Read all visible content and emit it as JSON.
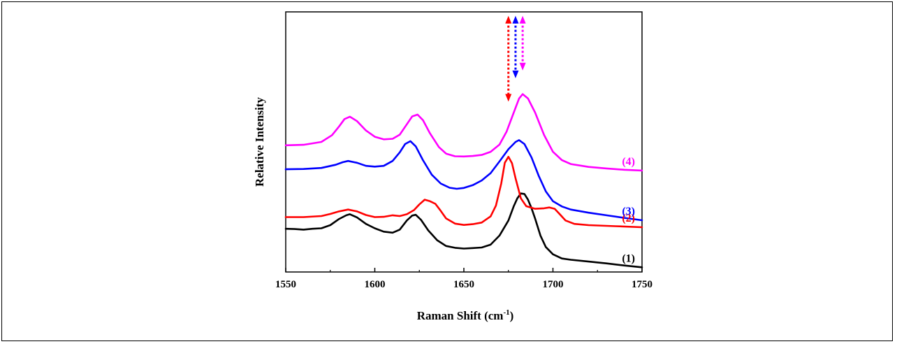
{
  "chart_data": {
    "type": "line",
    "xlabel": "Raman Shift (cm",
    "xlabel_sup": "-1",
    "xlabel_end": ")",
    "ylabel": "Relative Intensity",
    "xlim": [
      1550,
      1750
    ],
    "ylim": [
      0,
      1
    ],
    "x_ticks": [
      "1550",
      "1600",
      "1650",
      "1700",
      "1750"
    ],
    "y_ticks_shown": false,
    "grid": false,
    "series": [
      {
        "name": "(1)",
        "color": "#000000",
        "points": [
          [
            1550,
            0.166
          ],
          [
            1555,
            0.165
          ],
          [
            1560,
            0.163
          ],
          [
            1565,
            0.166
          ],
          [
            1570,
            0.168
          ],
          [
            1575,
            0.18
          ],
          [
            1580,
            0.204
          ],
          [
            1584,
            0.218
          ],
          [
            1586,
            0.222
          ],
          [
            1590,
            0.21
          ],
          [
            1595,
            0.185
          ],
          [
            1600,
            0.168
          ],
          [
            1605,
            0.155
          ],
          [
            1610,
            0.151
          ],
          [
            1614,
            0.163
          ],
          [
            1618,
            0.198
          ],
          [
            1621,
            0.217
          ],
          [
            1623,
            0.22
          ],
          [
            1626,
            0.2
          ],
          [
            1630,
            0.16
          ],
          [
            1635,
            0.122
          ],
          [
            1640,
            0.1
          ],
          [
            1645,
            0.093
          ],
          [
            1650,
            0.09
          ],
          [
            1655,
            0.092
          ],
          [
            1660,
            0.094
          ],
          [
            1665,
            0.105
          ],
          [
            1670,
            0.14
          ],
          [
            1675,
            0.198
          ],
          [
            1678,
            0.253
          ],
          [
            1680,
            0.283
          ],
          [
            1682,
            0.302
          ],
          [
            1684,
            0.3
          ],
          [
            1686,
            0.278
          ],
          [
            1688,
            0.245
          ],
          [
            1690,
            0.205
          ],
          [
            1693,
            0.14
          ],
          [
            1696,
            0.096
          ],
          [
            1700,
            0.068
          ],
          [
            1705,
            0.052
          ],
          [
            1710,
            0.047
          ],
          [
            1720,
            0.04
          ],
          [
            1730,
            0.033
          ],
          [
            1740,
            0.025
          ],
          [
            1750,
            0.018
          ]
        ]
      },
      {
        "name": "(2)",
        "color": "#ff0000",
        "points": [
          [
            1550,
            0.211
          ],
          [
            1560,
            0.211
          ],
          [
            1570,
            0.215
          ],
          [
            1575,
            0.223
          ],
          [
            1580,
            0.233
          ],
          [
            1585,
            0.24
          ],
          [
            1590,
            0.233
          ],
          [
            1595,
            0.219
          ],
          [
            1600,
            0.211
          ],
          [
            1605,
            0.212
          ],
          [
            1610,
            0.218
          ],
          [
            1614,
            0.215
          ],
          [
            1618,
            0.222
          ],
          [
            1622,
            0.238
          ],
          [
            1625,
            0.26
          ],
          [
            1628,
            0.278
          ],
          [
            1631,
            0.272
          ],
          [
            1634,
            0.262
          ],
          [
            1637,
            0.235
          ],
          [
            1640,
            0.206
          ],
          [
            1645,
            0.186
          ],
          [
            1650,
            0.181
          ],
          [
            1655,
            0.184
          ],
          [
            1660,
            0.19
          ],
          [
            1665,
            0.214
          ],
          [
            1668,
            0.255
          ],
          [
            1671,
            0.34
          ],
          [
            1673,
            0.42
          ],
          [
            1675,
            0.443
          ],
          [
            1677,
            0.418
          ],
          [
            1679,
            0.36
          ],
          [
            1682,
            0.283
          ],
          [
            1685,
            0.253
          ],
          [
            1690,
            0.243
          ],
          [
            1695,
            0.245
          ],
          [
            1698,
            0.248
          ],
          [
            1701,
            0.243
          ],
          [
            1704,
            0.221
          ],
          [
            1707,
            0.198
          ],
          [
            1712,
            0.185
          ],
          [
            1720,
            0.18
          ],
          [
            1735,
            0.176
          ],
          [
            1750,
            0.172
          ]
        ]
      },
      {
        "name": "(3)",
        "color": "#0000ff",
        "points": [
          [
            1550,
            0.395
          ],
          [
            1560,
            0.396
          ],
          [
            1570,
            0.4
          ],
          [
            1578,
            0.412
          ],
          [
            1582,
            0.422
          ],
          [
            1585,
            0.427
          ],
          [
            1590,
            0.42
          ],
          [
            1595,
            0.408
          ],
          [
            1600,
            0.405
          ],
          [
            1605,
            0.408
          ],
          [
            1610,
            0.427
          ],
          [
            1614,
            0.46
          ],
          [
            1617,
            0.492
          ],
          [
            1620,
            0.503
          ],
          [
            1623,
            0.483
          ],
          [
            1627,
            0.43
          ],
          [
            1632,
            0.374
          ],
          [
            1637,
            0.34
          ],
          [
            1642,
            0.324
          ],
          [
            1646,
            0.32
          ],
          [
            1650,
            0.323
          ],
          [
            1655,
            0.334
          ],
          [
            1660,
            0.352
          ],
          [
            1665,
            0.38
          ],
          [
            1670,
            0.425
          ],
          [
            1675,
            0.472
          ],
          [
            1679,
            0.5
          ],
          [
            1681,
            0.507
          ],
          [
            1684,
            0.492
          ],
          [
            1688,
            0.44
          ],
          [
            1692,
            0.37
          ],
          [
            1696,
            0.31
          ],
          [
            1700,
            0.272
          ],
          [
            1705,
            0.252
          ],
          [
            1710,
            0.24
          ],
          [
            1720,
            0.228
          ],
          [
            1730,
            0.218
          ],
          [
            1740,
            0.208
          ],
          [
            1750,
            0.199
          ]
        ]
      },
      {
        "name": "(4)",
        "color": "#ff00ff",
        "points": [
          [
            1550,
            0.487
          ],
          [
            1560,
            0.489
          ],
          [
            1570,
            0.5
          ],
          [
            1576,
            0.526
          ],
          [
            1580,
            0.56
          ],
          [
            1583,
            0.588
          ],
          [
            1586,
            0.597
          ],
          [
            1590,
            0.58
          ],
          [
            1595,
            0.544
          ],
          [
            1600,
            0.52
          ],
          [
            1605,
            0.51
          ],
          [
            1610,
            0.512
          ],
          [
            1614,
            0.528
          ],
          [
            1618,
            0.568
          ],
          [
            1621,
            0.598
          ],
          [
            1624,
            0.605
          ],
          [
            1627,
            0.584
          ],
          [
            1631,
            0.533
          ],
          [
            1636,
            0.48
          ],
          [
            1640,
            0.455
          ],
          [
            1645,
            0.445
          ],
          [
            1650,
            0.444
          ],
          [
            1655,
            0.446
          ],
          [
            1660,
            0.45
          ],
          [
            1665,
            0.462
          ],
          [
            1670,
            0.49
          ],
          [
            1674,
            0.54
          ],
          [
            1678,
            0.613
          ],
          [
            1681,
            0.667
          ],
          [
            1683,
            0.684
          ],
          [
            1686,
            0.667
          ],
          [
            1690,
            0.613
          ],
          [
            1695,
            0.527
          ],
          [
            1700,
            0.462
          ],
          [
            1705,
            0.43
          ],
          [
            1710,
            0.415
          ],
          [
            1720,
            0.404
          ],
          [
            1730,
            0.398
          ],
          [
            1740,
            0.393
          ],
          [
            1750,
            0.39
          ]
        ]
      }
    ],
    "peak_markers": [
      {
        "x": 1675,
        "color": "#ff0000",
        "y_top": 0.985,
        "y_bottom": 0.655
      },
      {
        "x": 1679,
        "color": "#0000ff",
        "y_top": 0.985,
        "y_bottom": 0.745
      },
      {
        "x": 1683,
        "color": "#ff00ff",
        "y_top": 0.985,
        "y_bottom": 0.775
      }
    ]
  }
}
